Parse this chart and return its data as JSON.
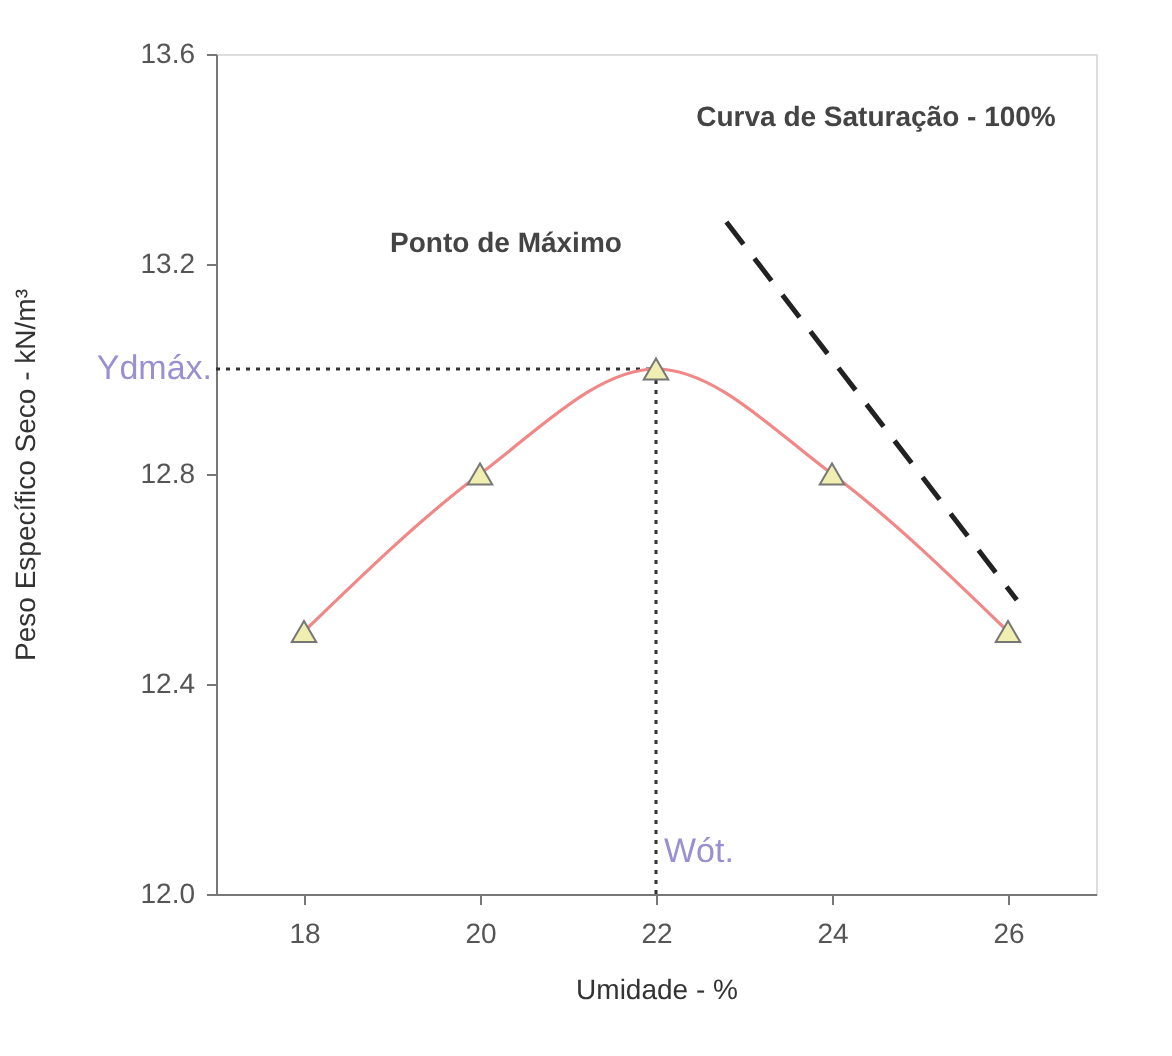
{
  "chart_data": {
    "type": "line",
    "xlabel": "Umidade - %",
    "ylabel": "Peso Específico Seco - kN/m³",
    "xlim": [
      17,
      27
    ],
    "xticks": [
      18,
      20,
      22,
      24,
      26
    ],
    "ylim": [
      12.0,
      13.6
    ],
    "yticks": [
      {
        "value": 12.0,
        "label": "12.0"
      },
      12.4,
      12.8,
      13.2,
      13.6
    ],
    "grid": false,
    "legend": false,
    "marker": "triangle",
    "series": [
      {
        "color": "#f08888",
        "x": [
          18,
          20,
          22,
          24,
          26
        ],
        "values": [
          12.5,
          12.8,
          13.0,
          12.8,
          12.5
        ]
      },
      {
        "color": "#222222",
        "x": [
          22.8,
          26.1
        ],
        "values": [
          13.28,
          12.56
        ],
        "line_style": "dashed",
        "marker": "none"
      }
    ],
    "ref_lines": [
      {
        "axis": "y",
        "value": 13.0,
        "label": "Ydmáx.",
        "color": "#333333",
        "line_style": "dotted"
      },
      {
        "axis": "x",
        "value": 22,
        "label": "Wót.",
        "color": "#333333",
        "line_style": "dotted"
      }
    ],
    "annotations": [
      "Ponto de Máximo",
      "Curva de Saturação - 100%"
    ]
  }
}
